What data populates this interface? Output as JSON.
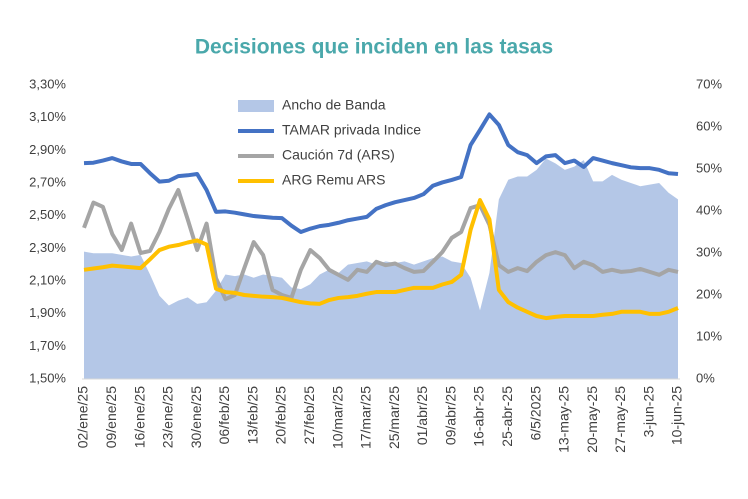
{
  "chart_data": {
    "type": "combo",
    "title": "Decisiones que inciden en las tasas",
    "categories": [
      "02/ene/25",
      null,
      null,
      "09/ene/25",
      null,
      null,
      "16/ene/25",
      null,
      null,
      "23/ene/25",
      null,
      null,
      "30/ene/25",
      null,
      null,
      "06/feb/25",
      null,
      null,
      "13/feb/25",
      null,
      null,
      "20/feb/25",
      null,
      null,
      "27/feb/25",
      null,
      null,
      "10/mar/25",
      null,
      null,
      "17/mar/25",
      null,
      null,
      "25/mar/25",
      null,
      null,
      "01/abr/25",
      null,
      null,
      "09/abr/25",
      null,
      null,
      "16-abr-25",
      null,
      null,
      "25-abr-25",
      null,
      null,
      "6/5/2025",
      null,
      null,
      "13-may-25",
      null,
      null,
      "20-may-25",
      null,
      null,
      "27-may-25",
      null,
      null,
      "3-jun-25",
      null,
      null,
      "10-jun-25"
    ],
    "series": [
      {
        "name": "Ancho de Banda",
        "type": "area",
        "axis": "y",
        "color": "#b4c7e7",
        "values": [
          2.28,
          2.27,
          2.27,
          2.27,
          2.26,
          2.25,
          2.26,
          2.14,
          2.01,
          1.95,
          1.98,
          2.0,
          1.96,
          1.97,
          2.04,
          2.14,
          2.13,
          2.14,
          2.12,
          2.14,
          2.13,
          2.12,
          2.06,
          2.05,
          2.08,
          2.14,
          2.17,
          2.15,
          2.2,
          2.21,
          2.22,
          2.2,
          2.22,
          2.21,
          2.22,
          2.2,
          2.22,
          2.24,
          2.25,
          2.22,
          2.21,
          2.12,
          1.92,
          2.15,
          2.6,
          2.72,
          2.74,
          2.74,
          2.78,
          2.85,
          2.82,
          2.78,
          2.8,
          2.84,
          2.71,
          2.71,
          2.75,
          2.72,
          2.7,
          2.68,
          2.69,
          2.7,
          2.64,
          2.6
        ]
      },
      {
        "name": "TAMAR privada Indice",
        "type": "line",
        "axis": "y2",
        "color": "#4472c4",
        "values": [
          51.4,
          51.5,
          52.0,
          52.6,
          51.8,
          51.2,
          51.2,
          49.0,
          47.0,
          47.2,
          48.3,
          48.5,
          48.8,
          45.0,
          39.8,
          39.9,
          39.6,
          39.2,
          38.8,
          38.6,
          38.4,
          38.3,
          36.5,
          35.0,
          35.8,
          36.4,
          36.7,
          37.2,
          37.8,
          38.2,
          38.6,
          40.5,
          41.4,
          42.1,
          42.6,
          43.1,
          44.0,
          46.0,
          46.8,
          47.4,
          48.1,
          55.7,
          59.3,
          63.0,
          60.5,
          55.7,
          54.0,
          53.3,
          51.4,
          53.0,
          53.3,
          51.4,
          52.0,
          50.5,
          52.6,
          52.0,
          51.4,
          50.9,
          50.4,
          50.2,
          50.2,
          49.8,
          49.0,
          48.8
        ]
      },
      {
        "name": "Caución 7d (ARS)",
        "type": "line",
        "axis": "y2",
        "color": "#a5a5a5",
        "values": [
          36,
          42,
          41,
          34.5,
          30.7,
          37,
          30,
          30.5,
          35,
          40.5,
          45,
          38,
          30.7,
          37,
          24,
          19,
          20,
          26.4,
          32.6,
          29.5,
          21.2,
          20,
          19.3,
          26,
          30.7,
          28.8,
          26,
          24.8,
          23.6,
          26,
          25.5,
          27.9,
          27.1,
          27.5,
          26.4,
          25.5,
          25.7,
          27.9,
          30.2,
          33.6,
          35,
          40.7,
          41.4,
          36.7,
          27.1,
          25.5,
          26.4,
          25.7,
          27.9,
          29.5,
          30.2,
          29.5,
          26.4,
          27.9,
          27.1,
          25.5,
          26,
          25.5,
          25.7,
          26.2,
          25.5,
          24.8,
          26,
          25.5
        ]
      },
      {
        "name": "ARG Remu ARS",
        "type": "line",
        "axis": "y2",
        "color": "#ffc000",
        "values": [
          26,
          26.3,
          26.6,
          27,
          26.8,
          26.6,
          26.4,
          28.5,
          30.7,
          31.5,
          31.9,
          32.5,
          33,
          32,
          21.5,
          20.7,
          20.5,
          20,
          19.8,
          19.6,
          19.5,
          19.3,
          18.8,
          18.3,
          18,
          17.9,
          18.8,
          19.3,
          19.5,
          19.8,
          20.3,
          20.7,
          20.7,
          20.7,
          21.2,
          21.7,
          21.7,
          21.7,
          22.5,
          23.1,
          24.8,
          35.5,
          42.6,
          38,
          21.2,
          18.3,
          17,
          16,
          15,
          14.5,
          14.8,
          15,
          15,
          15,
          15,
          15.3,
          15.5,
          16,
          16,
          16,
          15.5,
          15.5,
          16,
          16.9
        ]
      }
    ],
    "ylim": [
      1.5,
      3.3
    ],
    "yticks": [
      {
        "value": 1.5,
        "label": "1,50%"
      },
      {
        "value": 1.7,
        "label": "1,70%"
      },
      {
        "value": 1.9,
        "label": "1,90%"
      },
      {
        "value": 2.1,
        "label": "2,10%"
      },
      {
        "value": 2.3,
        "label": "2,30%"
      },
      {
        "value": 2.5,
        "label": "2,50%"
      },
      {
        "value": 2.7,
        "label": "2,70%"
      },
      {
        "value": 2.9,
        "label": "2,90%"
      },
      {
        "value": 3.1,
        "label": "3,10%"
      },
      {
        "value": 3.3,
        "label": "3,30%"
      }
    ],
    "y2lim": [
      0,
      70
    ],
    "y2ticks": [
      {
        "value": 0,
        "label": "0%"
      },
      {
        "value": 10,
        "label": "10%"
      },
      {
        "value": 20,
        "label": "20%"
      },
      {
        "value": 30,
        "label": "30%"
      },
      {
        "value": 40,
        "label": "40%"
      },
      {
        "value": 50,
        "label": "50%"
      },
      {
        "value": 60,
        "label": "60%"
      },
      {
        "value": 70,
        "label": "70%"
      }
    ],
    "grid": false,
    "legend": "top-left"
  }
}
